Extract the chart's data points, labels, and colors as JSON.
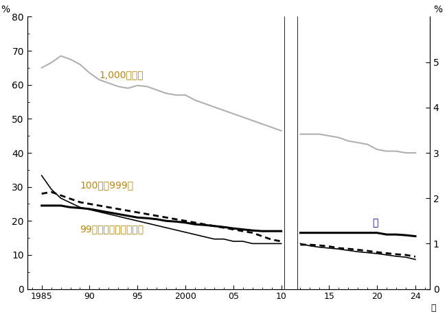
{
  "ylabel_left": "%",
  "ylabel_right": "%",
  "xlabel": "年",
  "ylim_left": [
    0,
    80
  ],
  "ylim_right": [
    0,
    6
  ],
  "yticks_left": [
    0,
    10,
    20,
    30,
    40,
    50,
    60,
    70,
    80
  ],
  "yticks_right": [
    0,
    1,
    2,
    3,
    4,
    5
  ],
  "background_color": "#ffffff",
  "series1000_x": [
    1985,
    1986,
    1987,
    1988,
    1989,
    1990,
    1991,
    1992,
    1993,
    1994,
    1995,
    1996,
    1997,
    1998,
    1999,
    2000,
    2001,
    2002,
    2003,
    2004,
    2005,
    2006,
    2007,
    2008,
    2009,
    2010
  ],
  "series1000_y": [
    65.0,
    66.5,
    68.5,
    67.5,
    66.0,
    63.5,
    61.5,
    60.5,
    59.5,
    59.0,
    59.8,
    59.5,
    58.5,
    57.5,
    57.0,
    57.0,
    55.5,
    54.5,
    53.5,
    52.5,
    51.5,
    50.5,
    49.5,
    48.5,
    47.5,
    46.5
  ],
  "series1000_x2": [
    2012,
    2013,
    2014,
    2015,
    2016,
    2017,
    2018,
    2019,
    2020,
    2021,
    2022,
    2023,
    2024
  ],
  "series1000_y2": [
    45.5,
    45.5,
    45.5,
    45.0,
    44.5,
    43.5,
    43.0,
    42.5,
    41.0,
    40.5,
    40.5,
    40.0,
    40.0
  ],
  "series100_x": [
    1985,
    1986,
    1987,
    1988,
    1989,
    1990,
    1991,
    1992,
    1993,
    1994,
    1995,
    1996,
    1997,
    1998,
    1999,
    2000,
    2001,
    2002,
    2003,
    2004,
    2005,
    2006,
    2007,
    2008,
    2009,
    2010
  ],
  "series100_y": [
    28.0,
    28.5,
    27.5,
    26.5,
    25.5,
    25.0,
    24.5,
    24.0,
    23.5,
    23.0,
    22.5,
    22.0,
    21.5,
    21.0,
    20.5,
    20.0,
    19.5,
    19.0,
    18.5,
    18.0,
    17.5,
    17.0,
    16.5,
    15.5,
    14.5,
    14.0
  ],
  "series100_x2": [
    2012,
    2013,
    2014,
    2015,
    2016,
    2017,
    2018,
    2019,
    2020,
    2021,
    2022,
    2023,
    2024
  ],
  "series100_y2": [
    13.0,
    13.0,
    12.8,
    12.5,
    12.0,
    11.8,
    11.5,
    11.2,
    10.8,
    10.5,
    10.2,
    10.0,
    9.5
  ],
  "seriestotal_x": [
    1985,
    1986,
    1987,
    1988,
    1989,
    1990,
    1991,
    1992,
    1993,
    1994,
    1995,
    1996,
    1997,
    1998,
    1999,
    2000,
    2001,
    2002,
    2003,
    2004,
    2005,
    2006,
    2007,
    2008,
    2009,
    2010
  ],
  "seriestotal_y": [
    24.5,
    24.5,
    24.5,
    24.0,
    23.8,
    23.5,
    23.0,
    22.5,
    22.0,
    21.5,
    21.0,
    20.8,
    20.5,
    20.0,
    19.8,
    19.5,
    19.0,
    18.8,
    18.5,
    18.2,
    17.8,
    17.5,
    17.2,
    17.0,
    17.0,
    17.0
  ],
  "seriestotal_x2": [
    2012,
    2013,
    2014,
    2015,
    2016,
    2017,
    2018,
    2019,
    2020,
    2021,
    2022,
    2023,
    2024
  ],
  "seriestotal_y2": [
    16.5,
    16.5,
    16.5,
    16.5,
    16.5,
    16.5,
    16.5,
    16.5,
    16.5,
    16.0,
    16.0,
    15.8,
    15.5
  ],
  "series99_x": [
    1985,
    1986,
    1987,
    1988,
    1989,
    1990,
    1991,
    1992,
    1993,
    1994,
    1995,
    1996,
    1997,
    1998,
    1999,
    2000,
    2001,
    2002,
    2003,
    2004,
    2005,
    2006,
    2007,
    2008,
    2009,
    2010
  ],
  "series99_y_right": [
    2.5,
    2.2,
    2.0,
    1.9,
    1.8,
    1.75,
    1.7,
    1.65,
    1.6,
    1.55,
    1.5,
    1.45,
    1.4,
    1.35,
    1.3,
    1.25,
    1.2,
    1.15,
    1.1,
    1.1,
    1.05,
    1.05,
    1.0,
    1.0,
    1.0,
    1.0
  ],
  "series99_x2": [
    2012,
    2013,
    2014,
    2015,
    2016,
    2017,
    2018,
    2019,
    2020,
    2021,
    2022,
    2023,
    2024
  ],
  "series99_y2_right": [
    1.0,
    0.95,
    0.92,
    0.9,
    0.88,
    0.85,
    0.82,
    0.8,
    0.78,
    0.75,
    0.72,
    0.7,
    0.65
  ],
  "color_gray": "#b0b0b0",
  "color_black": "#000000",
  "label_1000": "1,000人以上",
  "label_100": "100人～999人",
  "label_99": "99人以下（目盛は右）",
  "label_total": "計",
  "label_1000_color": "#b8860b",
  "label_100_color": "#b8860b",
  "label_99_color": "#b8860b",
  "label_total_color": "#00008b"
}
